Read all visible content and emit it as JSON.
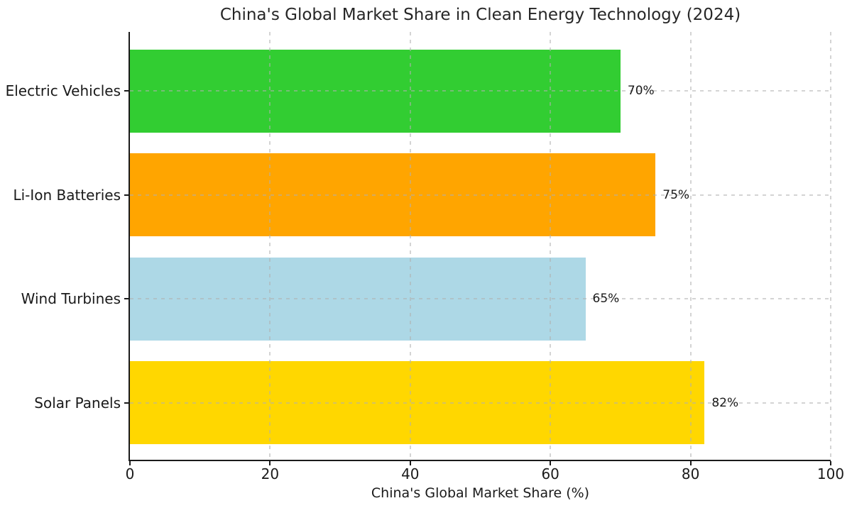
{
  "chart_data": {
    "type": "bar",
    "orientation": "horizontal",
    "title": "China's Global Market Share in Clean Energy Technology (2024)",
    "xlabel": "China's Global Market Share (%)",
    "categories": [
      "Electric Vehicles",
      "Li-Ion Batteries",
      "Wind Turbines",
      "Solar Panels"
    ],
    "values": [
      70,
      75,
      65,
      82
    ],
    "value_labels": [
      "70%",
      "75%",
      "65%",
      "82%"
    ],
    "bar_colors": [
      "#32CD32",
      "#FFA500",
      "#ADD8E6",
      "#FFD700"
    ],
    "xlim": [
      0,
      100
    ],
    "xticks": [
      0,
      20,
      40,
      60,
      80,
      100
    ],
    "xtick_labels": [
      "0",
      "20",
      "40",
      "60",
      "80",
      "100"
    ],
    "grid": "dashed light-gray gridlines on both axes, drawn over bars",
    "legend": "none",
    "spine_color": "#1a1a1a",
    "text_color": "#1a1a1a"
  }
}
